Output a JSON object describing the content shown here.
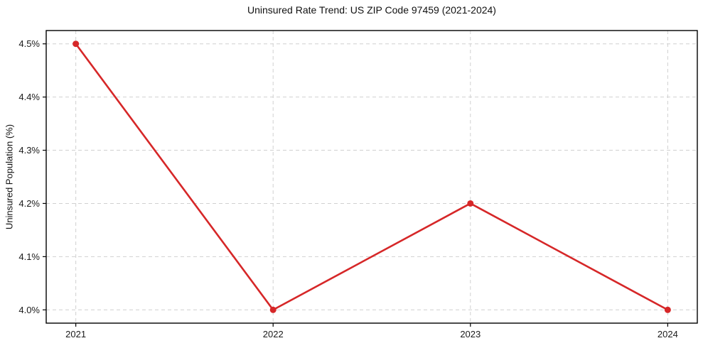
{
  "chart_data": {
    "type": "line",
    "title": "Uninsured Rate Trend: US ZIP Code 97459 (2021-2024)",
    "ylabel": "Uninsured Population (%)",
    "xlabel": "",
    "x": [
      2021,
      2022,
      2023,
      2024
    ],
    "values": [
      4.5,
      4.0,
      4.2,
      4.0
    ],
    "xticks": {
      "values": [
        2021,
        2022,
        2023,
        2024
      ],
      "labels": [
        "2021",
        "2022",
        "2023",
        "2024"
      ]
    },
    "yticks": {
      "values": [
        4.0,
        4.1,
        4.2,
        4.3,
        4.4,
        4.5
      ],
      "labels": [
        "4.0%",
        "4.1%",
        "4.2%",
        "4.3%",
        "4.4%",
        "4.5%"
      ]
    },
    "xlim": [
      2020.85,
      2024.15
    ],
    "ylim": [
      3.975,
      4.525
    ],
    "grid": true,
    "grid_style": "dashed",
    "legend": false,
    "marker": "circle",
    "colors": {
      "line": "#d62728",
      "marker": "#d62728",
      "grid": "#d0d0d0",
      "axis": "#000000",
      "text": "#1a1a1a",
      "background": "#ffffff"
    }
  }
}
